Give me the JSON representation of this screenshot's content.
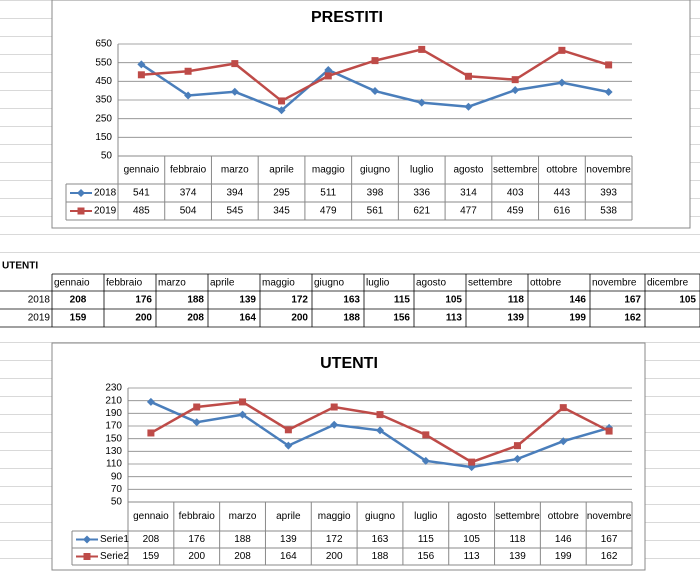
{
  "chart_data": [
    {
      "type": "line",
      "title": "PRESTITI",
      "categories": [
        "gennaio",
        "febbraio",
        "marzo",
        "aprile",
        "maggio",
        "giugno",
        "luglio",
        "agosto",
        "settembre",
        "ottobre",
        "novembre"
      ],
      "series": [
        {
          "name": "2018",
          "color": "#4a7ebb",
          "values": [
            541,
            374,
            394,
            295,
            511,
            398,
            336,
            314,
            403,
            443,
            393
          ]
        },
        {
          "name": "2019",
          "color": "#be4b48",
          "values": [
            485,
            504,
            545,
            345,
            479,
            561,
            621,
            477,
            459,
            616,
            538
          ]
        }
      ],
      "ylim": [
        50,
        650
      ],
      "yticks": [
        50,
        150,
        250,
        350,
        450,
        550,
        650
      ],
      "grid": true
    },
    {
      "type": "line",
      "title": "UTENTI",
      "categories": [
        "gennaio",
        "febbraio",
        "marzo",
        "aprile",
        "maggio",
        "giugno",
        "luglio",
        "agosto",
        "settembre",
        "ottobre",
        "novembre"
      ],
      "series": [
        {
          "name": "Serie1",
          "color": "#4a7ebb",
          "values": [
            208,
            176,
            188,
            139,
            172,
            163,
            115,
            105,
            118,
            146,
            167
          ]
        },
        {
          "name": "Serie2",
          "color": "#be4b48",
          "values": [
            159,
            200,
            208,
            164,
            200,
            188,
            156,
            113,
            139,
            199,
            162
          ]
        }
      ],
      "ylim": [
        50,
        230
      ],
      "yticks": [
        50,
        70,
        90,
        110,
        130,
        150,
        170,
        190,
        210,
        230
      ],
      "grid": true
    }
  ],
  "table": {
    "title": "UTENTI",
    "columns": [
      "gennaio",
      "febbraio",
      "marzo",
      "aprile",
      "maggio",
      "giugno",
      "luglio",
      "agosto",
      "settembre",
      "ottobre",
      "novembre",
      "dicembre"
    ],
    "rows": [
      {
        "label": "2018",
        "values": [
          "208",
          "176",
          "188",
          "139",
          "172",
          "163",
          "115",
          "105",
          "118",
          "146",
          "167",
          "105"
        ]
      },
      {
        "label": "2019",
        "values": [
          "159",
          "200",
          "208",
          "164",
          "200",
          "188",
          "156",
          "113",
          "139",
          "199",
          "162"
        ]
      }
    ]
  }
}
